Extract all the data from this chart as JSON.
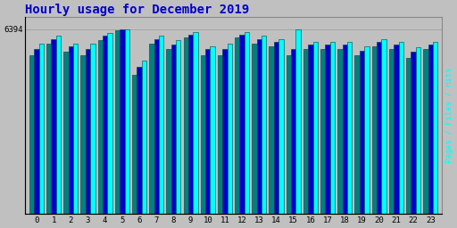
{
  "title": "Hourly usage for December 2019",
  "title_color": "#0000cc",
  "title_fontsize": 10,
  "background_color": "#c0c0c0",
  "plot_bg_color": "#c0c0c0",
  "hours": [
    0,
    1,
    2,
    3,
    4,
    5,
    6,
    7,
    8,
    9,
    10,
    11,
    12,
    13,
    14,
    15,
    16,
    17,
    18,
    19,
    20,
    21,
    22,
    23
  ],
  "pages": [
    5500,
    5900,
    5600,
    5500,
    6000,
    6350,
    4800,
    5900,
    5700,
    6100,
    5500,
    5500,
    6100,
    5900,
    5800,
    5500,
    5700,
    5700,
    5700,
    5500,
    5800,
    5700,
    5400,
    5700
  ],
  "files": [
    5700,
    6050,
    5800,
    5700,
    6150,
    6370,
    5100,
    6050,
    5850,
    6200,
    5700,
    5700,
    6200,
    6050,
    5950,
    5700,
    5850,
    5850,
    5850,
    5650,
    5950,
    5850,
    5600,
    5850
  ],
  "hits": [
    5900,
    6150,
    5900,
    5900,
    6250,
    6394,
    5300,
    6150,
    6000,
    6300,
    5800,
    5900,
    6300,
    6150,
    6050,
    6394,
    5950,
    5950,
    5950,
    5800,
    6050,
    5950,
    5750,
    5950
  ],
  "pages_color": "#008080",
  "files_color": "#0000cd",
  "hits_color": "#00ffff",
  "ylim": [
    0,
    6800
  ],
  "ytick_val": 6394,
  "ytick_label": "6394",
  "ylabel": "Pages / Files / Hits",
  "bar_width": 0.28,
  "border_color": "#004040"
}
